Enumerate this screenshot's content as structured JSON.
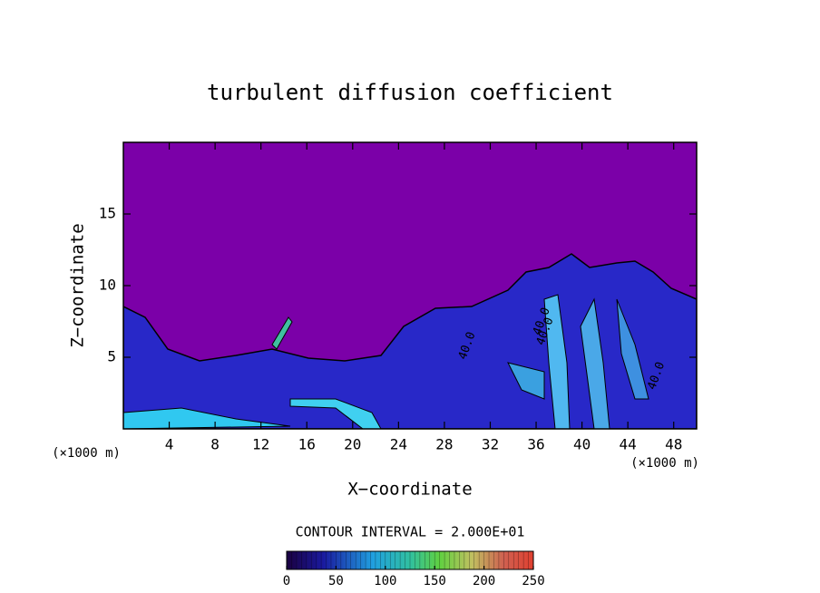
{
  "chart_data": {
    "type": "heatmap",
    "title": "turbulent diffusion coefficient",
    "x_label": "X−coordinate",
    "y_label": "Z−coordinate",
    "x_unit_left": "(×1000 m)",
    "x_unit_right": "(×1000 m)",
    "xlim": [
      0,
      50
    ],
    "xticks": [
      4,
      8,
      12,
      16,
      20,
      24,
      28,
      32,
      36,
      40,
      44,
      48
    ],
    "ylim": [
      0,
      20
    ],
    "yticks": [
      5,
      10,
      15
    ],
    "contour_interval": "CONTOUR INTERVAL = 2.000E+01",
    "contour_labels": [
      {
        "text": "40.0",
        "x": 30,
        "y": 5.8
      },
      {
        "text": "40.0",
        "x": 36.8,
        "y": 6.8
      },
      {
        "text": "40.0",
        "x": 46.5,
        "y": 3.7
      },
      {
        "text": "40.0",
        "x": 36.5,
        "y": 7.5
      }
    ],
    "colorbar": {
      "lim": [
        0,
        250
      ],
      "ticks": [
        0,
        50,
        100,
        150,
        200,
        250
      ]
    }
  }
}
